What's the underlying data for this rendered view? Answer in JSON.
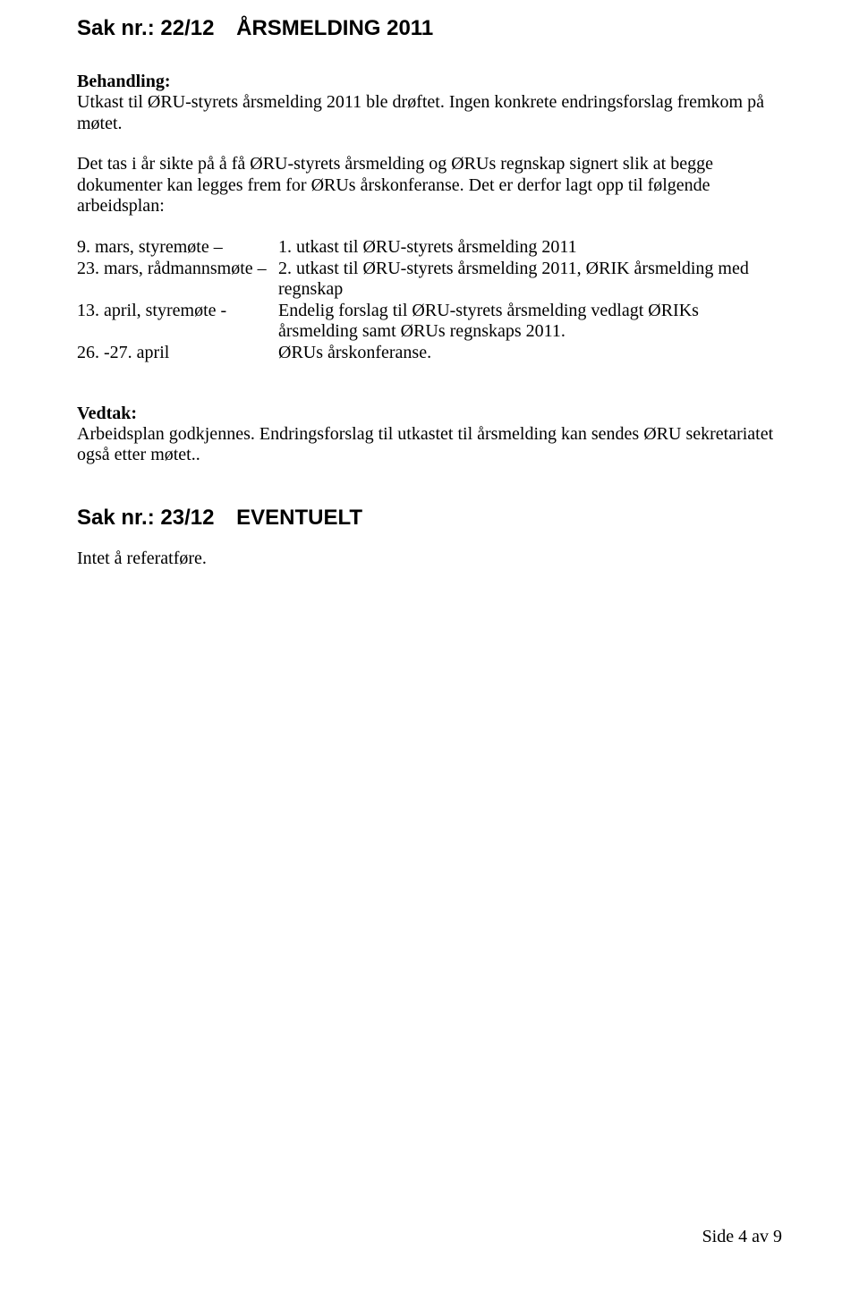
{
  "heading1": {
    "sak_nr": "Sak nr.: 22/12",
    "title": "ÅRSMELDING 2011"
  },
  "behandling": {
    "label": "Behandling:",
    "para1": "Utkast til ØRU-styrets årsmelding 2011 ble drøftet. Ingen konkrete endringsforslag fremkom på møtet.",
    "para2": "Det tas i år sikte på å få ØRU-styrets årsmelding og ØRUs regnskap signert slik at begge dokumenter kan legges frem for ØRUs årskonferanse. Det er derfor lagt opp til følgende arbeidsplan:"
  },
  "schedule": {
    "rows": [
      {
        "col1": "9. mars, styremøte –",
        "col2": "1. utkast til ØRU-styrets årsmelding 2011"
      },
      {
        "col1": "23. mars, rådmannsmøte –",
        "col2": "2. utkast til ØRU-styrets årsmelding 2011, ØRIK årsmelding med regnskap"
      },
      {
        "col1": "13. april, styremøte -",
        "col2": "Endelig forslag til ØRU-styrets årsmelding vedlagt ØRIKs årsmelding samt ØRUs regnskaps 2011."
      },
      {
        "col1": "26. -27. april",
        "col2": "ØRUs årskonferanse."
      }
    ]
  },
  "vedtak": {
    "label": "Vedtak:",
    "text": "Arbeidsplan godkjennes. Endringsforslag til utkastet til årsmelding kan sendes ØRU sekretariatet også etter møtet.."
  },
  "heading2": {
    "sak_nr": "Sak nr.: 23/12",
    "title": "EVENTUELT"
  },
  "closing": "Intet å referatføre.",
  "footer": "Side 4 av 9"
}
